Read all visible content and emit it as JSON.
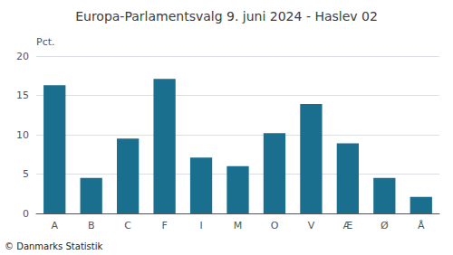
{
  "chart_data": {
    "type": "bar",
    "title": "Europa-Parlamentsvalg 9. juni 2024 - Haslev 02",
    "ylabel": "Pct.",
    "annotations": [
      "© Danmarks Statistik"
    ],
    "categories": [
      "A",
      "B",
      "C",
      "F",
      "I",
      "M",
      "O",
      "V",
      "Æ",
      "Ø",
      "Å"
    ],
    "values": [
      16.3,
      4.5,
      9.5,
      17.1,
      7.1,
      6.0,
      10.2,
      13.9,
      8.9,
      4.5,
      2.1
    ],
    "color": "#1a6e8e",
    "ylim": [
      0,
      20
    ],
    "yticks": [
      0,
      5,
      10,
      15,
      20
    ],
    "grid": true
  }
}
